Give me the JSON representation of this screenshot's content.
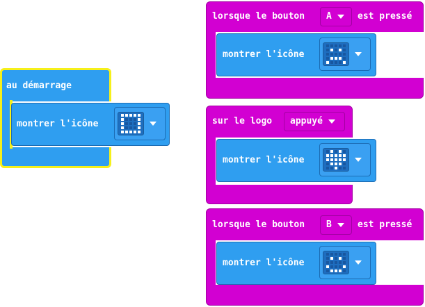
{
  "colors": {
    "event": "#d200d2",
    "event_border": "#a300a3",
    "basic": "#2f9ef0",
    "basic_border": "#1c6cb4",
    "selected_outline": "#f6f01a"
  },
  "on_start": {
    "label": "au démarrage",
    "command": {
      "label": "montrer l'icône",
      "icon": "square-icon",
      "leds": [
        [
          1,
          1,
          1,
          1,
          1
        ],
        [
          1,
          0,
          0,
          0,
          1
        ],
        [
          1,
          0,
          0,
          0,
          1
        ],
        [
          1,
          0,
          0,
          0,
          1
        ],
        [
          1,
          1,
          1,
          1,
          1
        ]
      ]
    }
  },
  "button_a": {
    "label_before": "lorsque le bouton",
    "button": "A",
    "label_after": "est pressé",
    "command": {
      "label": "montrer l'icône",
      "icon": "sad-face-icon",
      "leds": [
        [
          0,
          0,
          0,
          0,
          0
        ],
        [
          0,
          1,
          0,
          1,
          0
        ],
        [
          0,
          0,
          0,
          0,
          0
        ],
        [
          0,
          1,
          1,
          1,
          0
        ],
        [
          1,
          0,
          0,
          0,
          1
        ]
      ]
    }
  },
  "logo": {
    "label": "sur le logo",
    "event": "appuyé",
    "command": {
      "label": "montrer l'icône",
      "icon": "heart-icon",
      "leds": [
        [
          0,
          1,
          0,
          1,
          0
        ],
        [
          1,
          1,
          1,
          1,
          1
        ],
        [
          1,
          1,
          1,
          1,
          1
        ],
        [
          0,
          1,
          1,
          1,
          0
        ],
        [
          0,
          0,
          1,
          0,
          0
        ]
      ]
    }
  },
  "button_b": {
    "label_before": "lorsque le bouton",
    "button": "B",
    "label_after": "est pressé",
    "command": {
      "label": "montrer l'icône",
      "icon": "happy-face-icon",
      "leds": [
        [
          0,
          0,
          0,
          0,
          0
        ],
        [
          0,
          1,
          0,
          1,
          0
        ],
        [
          0,
          0,
          0,
          0,
          0
        ],
        [
          1,
          0,
          0,
          0,
          1
        ],
        [
          0,
          1,
          1,
          1,
          0
        ]
      ]
    }
  }
}
